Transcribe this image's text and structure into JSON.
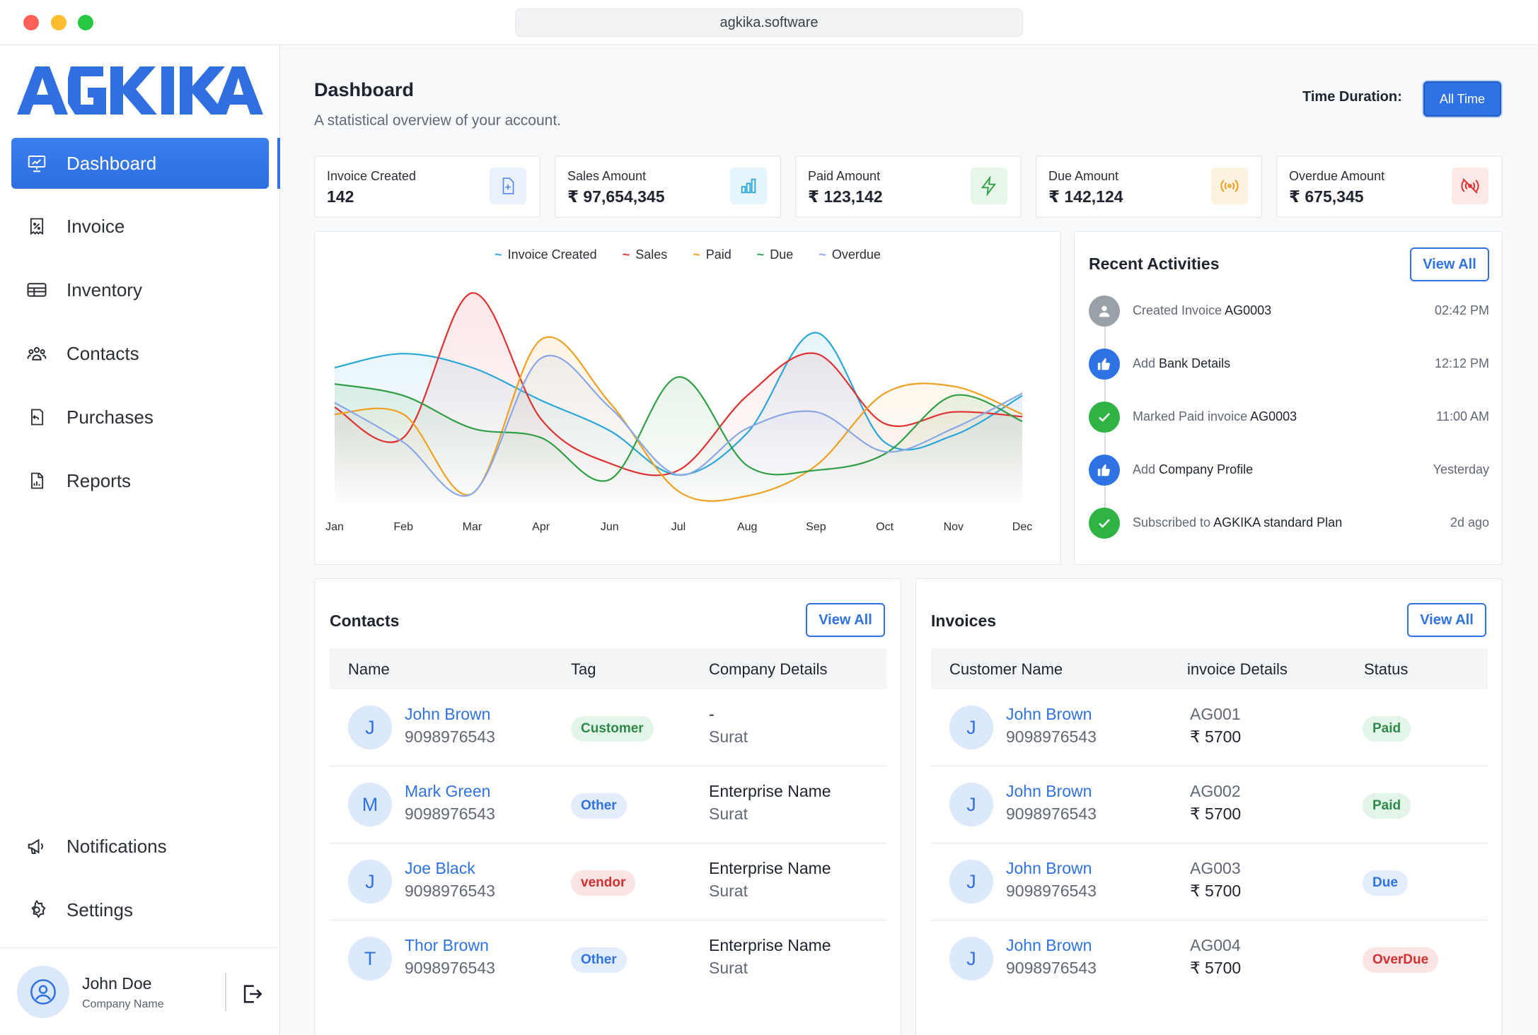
{
  "browser": {
    "url": "agkika.software"
  },
  "brand": {
    "logo_text": "AGKIKA",
    "accent": "#2f72e4"
  },
  "sidebar": {
    "items": [
      {
        "label": "Dashboard",
        "icon": "presentation-chart-icon"
      },
      {
        "label": "Invoice",
        "icon": "receipt-percent-icon"
      },
      {
        "label": "Inventory",
        "icon": "table-icon"
      },
      {
        "label": "Contacts",
        "icon": "users-icon"
      },
      {
        "label": "Purchases",
        "icon": "purchase-return-icon"
      },
      {
        "label": "Reports",
        "icon": "report-chart-icon"
      }
    ],
    "bottom_items": [
      {
        "label": "Notifications",
        "icon": "megaphone-icon"
      },
      {
        "label": "Settings",
        "icon": "gear-icon"
      }
    ],
    "user": {
      "name": "John Doe",
      "company": "Company Name"
    }
  },
  "header": {
    "title": "Dashboard",
    "subtitle": "A statistical overview of your account.",
    "time_label": "Time Duration:",
    "time_value": "All Time"
  },
  "stats": [
    {
      "label": "Invoice Created",
      "value": "142",
      "icon": "file-plus-icon",
      "color": "#5b8def",
      "bg": "#eaf1fc"
    },
    {
      "label": "Sales Amount",
      "value": "₹ 97,654,345",
      "icon": "bar-chart-icon",
      "color": "#2aa7d8",
      "bg": "#e6f5fb"
    },
    {
      "label": "Paid Amount",
      "value": "₹ 123,142",
      "icon": "lightning-icon",
      "color": "#2f9e44",
      "bg": "#e6f6e9"
    },
    {
      "label": "Due Amount",
      "value": "₹ 142,124",
      "icon": "broadcast-icon",
      "color": "#f0a020",
      "bg": "#fdf2e0"
    },
    {
      "label": "Overdue Amount",
      "value": "₹ 675,345",
      "icon": "broadcast-off-icon",
      "color": "#e03131",
      "bg": "#fde8e8"
    }
  ],
  "chart_data": {
    "type": "line",
    "categories": [
      "Jan",
      "Feb",
      "Mar",
      "Apr",
      "Jun",
      "Jul",
      "Aug",
      "Sep",
      "Oct",
      "Nov",
      "Dec"
    ],
    "series": [
      {
        "name": "Invoice Created",
        "color": "#2aa7d8",
        "values": [
          60,
          66,
          60,
          46,
          33,
          14,
          32,
          75,
          28,
          31,
          48
        ]
      },
      {
        "name": "Sales",
        "color": "#e03131",
        "values": [
          43,
          30,
          92,
          38,
          19,
          16,
          48,
          66,
          36,
          41,
          39
        ]
      },
      {
        "name": "Paid",
        "color": "#f0a020",
        "values": [
          40,
          40,
          6,
          72,
          45,
          7,
          5,
          18,
          49,
          52,
          40
        ]
      },
      {
        "name": "Due",
        "color": "#2f9e44",
        "values": [
          53,
          48,
          34,
          30,
          12,
          56,
          18,
          16,
          23,
          48,
          37
        ]
      },
      {
        "name": "Overdue",
        "color": "#8aa8e6",
        "values": [
          45,
          28,
          6,
          64,
          43,
          14,
          34,
          41,
          24,
          34,
          49
        ]
      }
    ],
    "ylim": [
      0,
      100
    ],
    "grid": false,
    "legend": "top-center"
  },
  "activities": {
    "title": "Recent Activities",
    "view_all": "View All",
    "items": [
      {
        "prefix": "Created Invoice",
        "highlight": "AG0003",
        "time": "02:42 PM",
        "icon": "user-icon",
        "color": "#9aa0a8"
      },
      {
        "prefix": "Add",
        "highlight": "Bank Details",
        "time": "12:12 PM",
        "icon": "thumbs-up-icon",
        "color": "#2f72e4"
      },
      {
        "prefix": "Marked Paid invoice",
        "highlight": "AG0003",
        "time": "11:00 AM",
        "icon": "check-icon",
        "color": "#2fb344"
      },
      {
        "prefix": "Add",
        "highlight": "Company Profile",
        "time": "Yesterday",
        "icon": "thumbs-up-icon",
        "color": "#2f72e4"
      },
      {
        "prefix": "Subscribed to",
        "highlight": "AGKIKA standard Plan",
        "time": "2d ago",
        "icon": "check-icon",
        "color": "#2fb344"
      }
    ]
  },
  "contacts": {
    "title": "Contacts",
    "view_all": "View All",
    "columns": [
      "Name",
      "Tag",
      "Company Details"
    ],
    "rows": [
      {
        "initial": "J",
        "name": "John Brown",
        "phone": "9098976543",
        "tag": "Customer",
        "tag_color": "#2f8a4a",
        "tag_bg": "#e3f5e8",
        "company": "-",
        "city": "Surat"
      },
      {
        "initial": "M",
        "name": "Mark Green",
        "phone": "9098976543",
        "tag": "Other",
        "tag_color": "#2f72e4",
        "tag_bg": "#e3edfc",
        "company": "Enterprise Name",
        "city": "Surat"
      },
      {
        "initial": "J",
        "name": "Joe Black",
        "phone": "9098976543",
        "tag": "vendor",
        "tag_color": "#d03030",
        "tag_bg": "#fde4e4",
        "company": "Enterprise Name",
        "city": "Surat"
      },
      {
        "initial": "T",
        "name": "Thor Brown",
        "phone": "9098976543",
        "tag": "Other",
        "tag_color": "#2f72e4",
        "tag_bg": "#e3edfc",
        "company": "Enterprise Name",
        "city": "Surat"
      }
    ]
  },
  "invoices": {
    "title": "Invoices",
    "view_all": "View All",
    "columns": [
      "Customer Name",
      "invoice Details",
      "Status"
    ],
    "rows": [
      {
        "initial": "J",
        "name": "John Brown",
        "phone": "9098976543",
        "invoice": "AG001",
        "amount": "₹ 5700",
        "status": "Paid",
        "status_color": "#2f8a4a",
        "status_bg": "#e3f5e8"
      },
      {
        "initial": "J",
        "name": "John Brown",
        "phone": "9098976543",
        "invoice": "AG002",
        "amount": "₹ 5700",
        "status": "Paid",
        "status_color": "#2f8a4a",
        "status_bg": "#e3f5e8"
      },
      {
        "initial": "J",
        "name": "John Brown",
        "phone": "9098976543",
        "invoice": "AG003",
        "amount": "₹ 5700",
        "status": "Due",
        "status_color": "#2f72e4",
        "status_bg": "#e3edfc"
      },
      {
        "initial": "J",
        "name": "John Brown",
        "phone": "9098976543",
        "invoice": "AG004",
        "amount": "₹ 5700",
        "status": "OverDue",
        "status_color": "#d03030",
        "status_bg": "#fde4e4"
      }
    ]
  }
}
